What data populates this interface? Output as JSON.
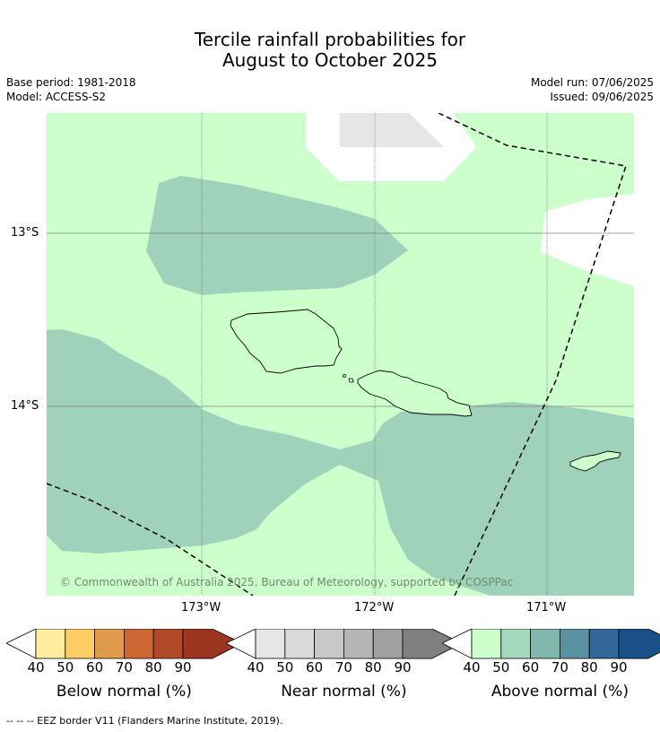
{
  "title": {
    "line1": "Tercile rainfall probabilities for",
    "line2": "August to October 2025"
  },
  "meta": {
    "base_period": "Base period: 1981-2018",
    "model": "Model: ACCESS-S2",
    "model_run": "Model run: 07/06/2025",
    "issued": "Issued: 09/06/2025"
  },
  "map": {
    "lat_ticks": [
      "13°S",
      "14°S"
    ],
    "lon_ticks": [
      "173°W",
      "172°W",
      "171°W"
    ],
    "copyright": "© Commonwealth of Australia 2025, Bureau of Meteorology, supported by COSPPac",
    "colors": {
      "above_40": "#ccffcc",
      "above_50": "#9fd1bb",
      "near_40": "#e6e6e6",
      "none": "#ffffff"
    }
  },
  "colorbars": [
    {
      "title": "Below normal (%)",
      "labels": [
        "40",
        "50",
        "60",
        "70",
        "80",
        "90"
      ],
      "colors": [
        "#ffeea0",
        "#ffcc66",
        "#e09a4c",
        "#cc6633",
        "#b04a28",
        "#9b3520"
      ]
    },
    {
      "title": "Near normal (%)",
      "labels": [
        "40",
        "50",
        "60",
        "70",
        "80",
        "90"
      ],
      "colors": [
        "#e6e6e6",
        "#d9d9d9",
        "#c8c8c8",
        "#b5b5b5",
        "#a0a0a0",
        "#808080"
      ]
    },
    {
      "title": "Above normal (%)",
      "labels": [
        "40",
        "50",
        "60",
        "70",
        "80",
        "90"
      ],
      "colors": [
        "#ccffcc",
        "#a3d9bc",
        "#80b8ad",
        "#5a92a2",
        "#336699",
        "#1a5088"
      ]
    }
  ],
  "footnote": "--  --  -- EEZ border V11 (Flanders Marine Institute, 2019)."
}
